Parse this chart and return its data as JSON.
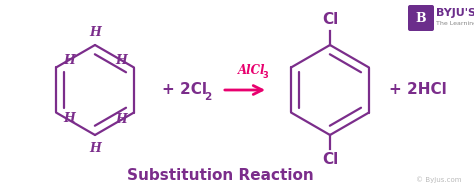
{
  "bg_color": "#ffffff",
  "molecule_color": "#7b2d8b",
  "arrow_color": "#e8006e",
  "label_color": "#7b2d8b",
  "title_text": "Substitution Reaction",
  "title_color": "#7b2d8b",
  "watermark": "© Byjus.com",
  "watermark_color": "#bbbbbb",
  "byju_box_color": "#6b2d8b",
  "reagent": "+ 2Cl",
  "reagent_sub": "2",
  "catalyst": "AlCl",
  "catalyst_sub": "3",
  "product": "+ 2HCl",
  "cl_top": "Cl",
  "cl_bottom": "Cl"
}
